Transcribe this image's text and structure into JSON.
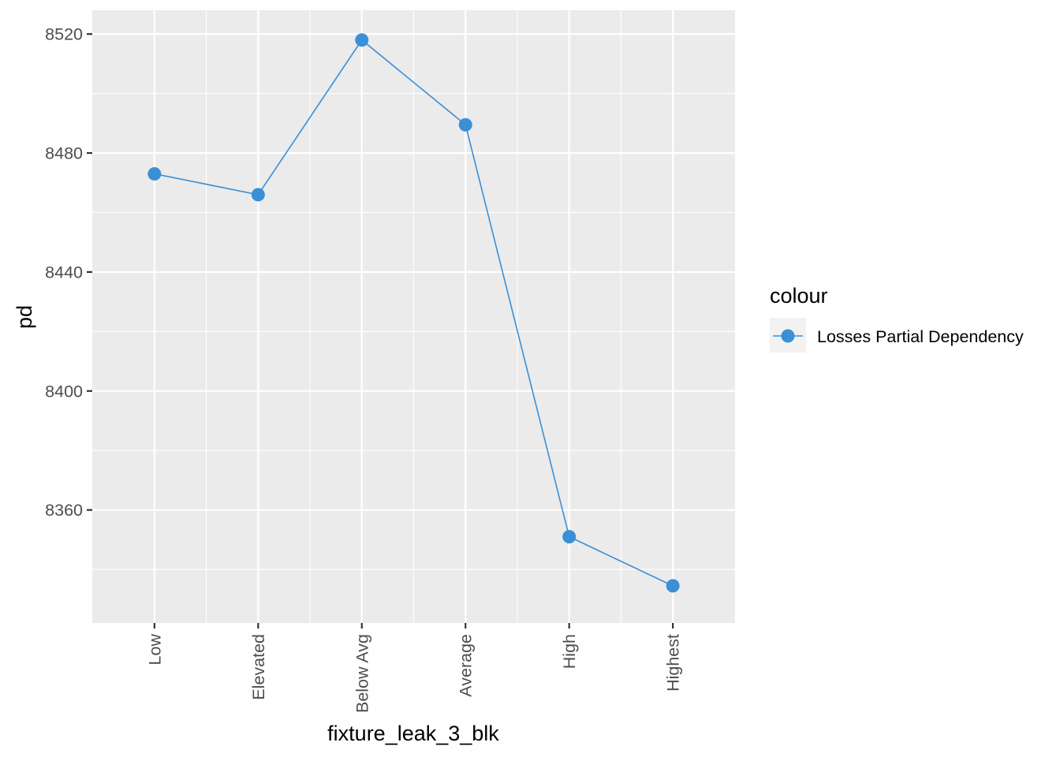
{
  "chart_data": {
    "type": "line",
    "title": "",
    "xlabel": "fixture_leak_3_blk",
    "ylabel": "pd",
    "categories": [
      "Low",
      "Elevated",
      "Below Avg",
      "Average",
      "High",
      "Highest"
    ],
    "series": [
      {
        "name": "Losses Partial Dependency",
        "values": [
          8473,
          8466,
          8518,
          8489.5,
          8351,
          8334.5
        ]
      }
    ],
    "ylim": [
      8322,
      8528
    ],
    "yticks": [
      8360,
      8400,
      8440,
      8480,
      8520
    ],
    "grid": true,
    "legend": {
      "title": "colour",
      "position": "right"
    },
    "colors": {
      "series": "#3A8FD6",
      "panel": "#EBEBEB",
      "grid": "#FFFFFF",
      "tick_text": "#4D4D4D",
      "axis_title": "#000000"
    }
  }
}
